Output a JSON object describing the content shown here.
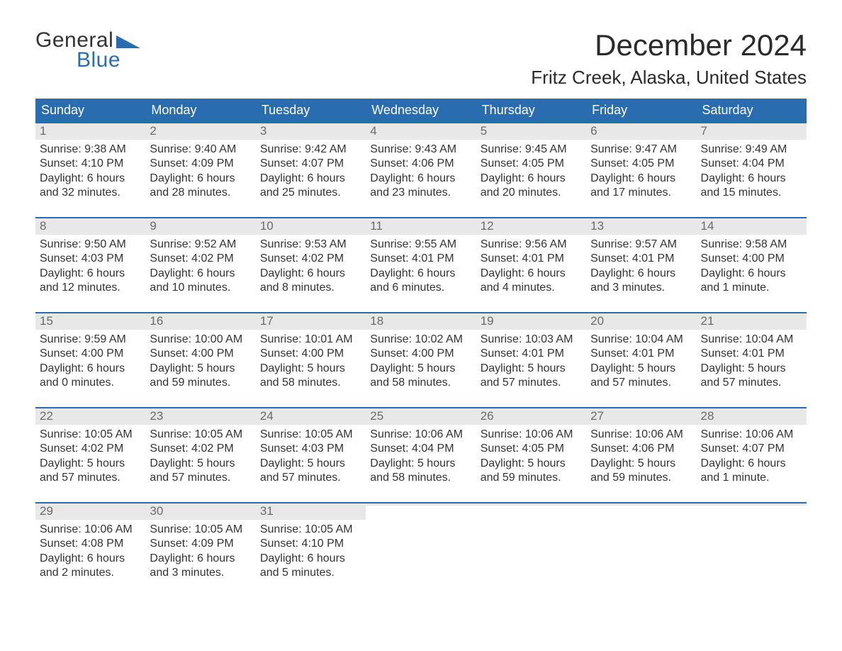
{
  "brand": {
    "word1": "General",
    "word2": "Blue"
  },
  "colors": {
    "accent": "#2a6cb0",
    "header_bg": "#2a6cb0",
    "header_text": "#ffffff",
    "daynum_bg": "#e8e8e8",
    "daynum_text": "#6a6a6a",
    "body_text": "#333333",
    "page_bg": "#ffffff",
    "week_border": "#2a6cb0"
  },
  "typography": {
    "month_title_size_pt": 32,
    "location_size_pt": 20,
    "weekday_size_pt": 14,
    "body_size_pt": 12
  },
  "title": "December 2024",
  "location": "Fritz Creek, Alaska, United States",
  "weekdays": [
    "Sunday",
    "Monday",
    "Tuesday",
    "Wednesday",
    "Thursday",
    "Friday",
    "Saturday"
  ],
  "weeks": [
    [
      {
        "n": "1",
        "sr": "Sunrise: 9:38 AM",
        "ss": "Sunset: 4:10 PM",
        "dl1": "Daylight: 6 hours",
        "dl2": "and 32 minutes."
      },
      {
        "n": "2",
        "sr": "Sunrise: 9:40 AM",
        "ss": "Sunset: 4:09 PM",
        "dl1": "Daylight: 6 hours",
        "dl2": "and 28 minutes."
      },
      {
        "n": "3",
        "sr": "Sunrise: 9:42 AM",
        "ss": "Sunset: 4:07 PM",
        "dl1": "Daylight: 6 hours",
        "dl2": "and 25 minutes."
      },
      {
        "n": "4",
        "sr": "Sunrise: 9:43 AM",
        "ss": "Sunset: 4:06 PM",
        "dl1": "Daylight: 6 hours",
        "dl2": "and 23 minutes."
      },
      {
        "n": "5",
        "sr": "Sunrise: 9:45 AM",
        "ss": "Sunset: 4:05 PM",
        "dl1": "Daylight: 6 hours",
        "dl2": "and 20 minutes."
      },
      {
        "n": "6",
        "sr": "Sunrise: 9:47 AM",
        "ss": "Sunset: 4:05 PM",
        "dl1": "Daylight: 6 hours",
        "dl2": "and 17 minutes."
      },
      {
        "n": "7",
        "sr": "Sunrise: 9:49 AM",
        "ss": "Sunset: 4:04 PM",
        "dl1": "Daylight: 6 hours",
        "dl2": "and 15 minutes."
      }
    ],
    [
      {
        "n": "8",
        "sr": "Sunrise: 9:50 AM",
        "ss": "Sunset: 4:03 PM",
        "dl1": "Daylight: 6 hours",
        "dl2": "and 12 minutes."
      },
      {
        "n": "9",
        "sr": "Sunrise: 9:52 AM",
        "ss": "Sunset: 4:02 PM",
        "dl1": "Daylight: 6 hours",
        "dl2": "and 10 minutes."
      },
      {
        "n": "10",
        "sr": "Sunrise: 9:53 AM",
        "ss": "Sunset: 4:02 PM",
        "dl1": "Daylight: 6 hours",
        "dl2": "and 8 minutes."
      },
      {
        "n": "11",
        "sr": "Sunrise: 9:55 AM",
        "ss": "Sunset: 4:01 PM",
        "dl1": "Daylight: 6 hours",
        "dl2": "and 6 minutes."
      },
      {
        "n": "12",
        "sr": "Sunrise: 9:56 AM",
        "ss": "Sunset: 4:01 PM",
        "dl1": "Daylight: 6 hours",
        "dl2": "and 4 minutes."
      },
      {
        "n": "13",
        "sr": "Sunrise: 9:57 AM",
        "ss": "Sunset: 4:01 PM",
        "dl1": "Daylight: 6 hours",
        "dl2": "and 3 minutes."
      },
      {
        "n": "14",
        "sr": "Sunrise: 9:58 AM",
        "ss": "Sunset: 4:00 PM",
        "dl1": "Daylight: 6 hours",
        "dl2": "and 1 minute."
      }
    ],
    [
      {
        "n": "15",
        "sr": "Sunrise: 9:59 AM",
        "ss": "Sunset: 4:00 PM",
        "dl1": "Daylight: 6 hours",
        "dl2": "and 0 minutes."
      },
      {
        "n": "16",
        "sr": "Sunrise: 10:00 AM",
        "ss": "Sunset: 4:00 PM",
        "dl1": "Daylight: 5 hours",
        "dl2": "and 59 minutes."
      },
      {
        "n": "17",
        "sr": "Sunrise: 10:01 AM",
        "ss": "Sunset: 4:00 PM",
        "dl1": "Daylight: 5 hours",
        "dl2": "and 58 minutes."
      },
      {
        "n": "18",
        "sr": "Sunrise: 10:02 AM",
        "ss": "Sunset: 4:00 PM",
        "dl1": "Daylight: 5 hours",
        "dl2": "and 58 minutes."
      },
      {
        "n": "19",
        "sr": "Sunrise: 10:03 AM",
        "ss": "Sunset: 4:01 PM",
        "dl1": "Daylight: 5 hours",
        "dl2": "and 57 minutes."
      },
      {
        "n": "20",
        "sr": "Sunrise: 10:04 AM",
        "ss": "Sunset: 4:01 PM",
        "dl1": "Daylight: 5 hours",
        "dl2": "and 57 minutes."
      },
      {
        "n": "21",
        "sr": "Sunrise: 10:04 AM",
        "ss": "Sunset: 4:01 PM",
        "dl1": "Daylight: 5 hours",
        "dl2": "and 57 minutes."
      }
    ],
    [
      {
        "n": "22",
        "sr": "Sunrise: 10:05 AM",
        "ss": "Sunset: 4:02 PM",
        "dl1": "Daylight: 5 hours",
        "dl2": "and 57 minutes."
      },
      {
        "n": "23",
        "sr": "Sunrise: 10:05 AM",
        "ss": "Sunset: 4:02 PM",
        "dl1": "Daylight: 5 hours",
        "dl2": "and 57 minutes."
      },
      {
        "n": "24",
        "sr": "Sunrise: 10:05 AM",
        "ss": "Sunset: 4:03 PM",
        "dl1": "Daylight: 5 hours",
        "dl2": "and 57 minutes."
      },
      {
        "n": "25",
        "sr": "Sunrise: 10:06 AM",
        "ss": "Sunset: 4:04 PM",
        "dl1": "Daylight: 5 hours",
        "dl2": "and 58 minutes."
      },
      {
        "n": "26",
        "sr": "Sunrise: 10:06 AM",
        "ss": "Sunset: 4:05 PM",
        "dl1": "Daylight: 5 hours",
        "dl2": "and 59 minutes."
      },
      {
        "n": "27",
        "sr": "Sunrise: 10:06 AM",
        "ss": "Sunset: 4:06 PM",
        "dl1": "Daylight: 5 hours",
        "dl2": "and 59 minutes."
      },
      {
        "n": "28",
        "sr": "Sunrise: 10:06 AM",
        "ss": "Sunset: 4:07 PM",
        "dl1": "Daylight: 6 hours",
        "dl2": "and 1 minute."
      }
    ],
    [
      {
        "n": "29",
        "sr": "Sunrise: 10:06 AM",
        "ss": "Sunset: 4:08 PM",
        "dl1": "Daylight: 6 hours",
        "dl2": "and 2 minutes."
      },
      {
        "n": "30",
        "sr": "Sunrise: 10:05 AM",
        "ss": "Sunset: 4:09 PM",
        "dl1": "Daylight: 6 hours",
        "dl2": "and 3 minutes."
      },
      {
        "n": "31",
        "sr": "Sunrise: 10:05 AM",
        "ss": "Sunset: 4:10 PM",
        "dl1": "Daylight: 6 hours",
        "dl2": "and 5 minutes."
      },
      {
        "empty": true
      },
      {
        "empty": true
      },
      {
        "empty": true
      },
      {
        "empty": true
      }
    ]
  ]
}
